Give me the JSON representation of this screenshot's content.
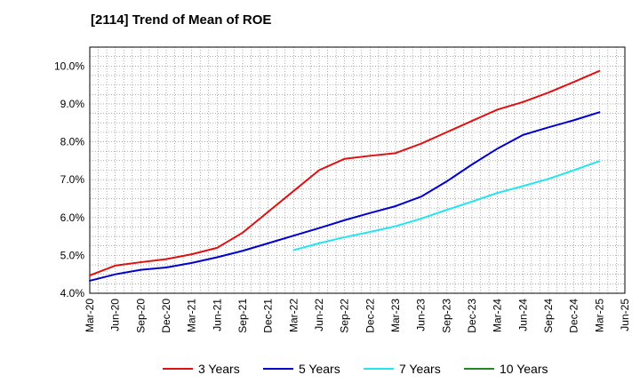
{
  "title": "[2114]  Trend of Mean of ROE",
  "chart_data": {
    "type": "line",
    "title": "[2114]  Trend of Mean of ROE",
    "xlabel": "",
    "ylabel": "",
    "ylim": [
      4.0,
      10.5
    ],
    "y_ticks": [
      "4.0%",
      "5.0%",
      "6.0%",
      "7.0%",
      "8.0%",
      "9.0%",
      "10.0%"
    ],
    "y_tick_values": [
      4.0,
      5.0,
      6.0,
      7.0,
      8.0,
      9.0,
      10.0
    ],
    "x_ticks": [
      "Mar-20",
      "Jun-20",
      "Sep-20",
      "Dec-20",
      "Mar-21",
      "Jun-21",
      "Sep-21",
      "Dec-21",
      "Mar-22",
      "Jun-22",
      "Sep-22",
      "Dec-22",
      "Mar-23",
      "Jun-23",
      "Sep-23",
      "Dec-23",
      "Mar-24",
      "Jun-24",
      "Sep-24",
      "Dec-24",
      "Mar-25",
      "Jun-25"
    ],
    "grid": true,
    "legend_position": "bottom",
    "series": [
      {
        "name": "3 Years",
        "color": "#dd1111",
        "values": [
          4.47,
          4.73,
          4.82,
          4.9,
          5.03,
          5.2,
          5.6,
          6.15,
          6.7,
          7.25,
          7.55,
          7.63,
          7.7,
          7.95,
          8.25,
          8.55,
          8.85,
          9.05,
          9.3,
          9.58,
          9.87
        ]
      },
      {
        "name": "5 Years",
        "color": "#0000cc",
        "values": [
          4.33,
          4.5,
          4.62,
          4.68,
          4.8,
          4.95,
          5.12,
          5.32,
          5.52,
          5.72,
          5.93,
          6.12,
          6.3,
          6.55,
          6.95,
          7.4,
          7.82,
          8.18,
          8.38,
          8.57,
          8.78
        ]
      },
      {
        "name": "7 Years",
        "color": "#22e5f0",
        "start_index": 8,
        "values": [
          5.14,
          5.32,
          5.48,
          5.62,
          5.77,
          5.97,
          6.2,
          6.42,
          6.65,
          6.83,
          7.02,
          7.25,
          7.49
        ]
      },
      {
        "name": "10 Years",
        "color": "#228822",
        "values": []
      }
    ]
  }
}
